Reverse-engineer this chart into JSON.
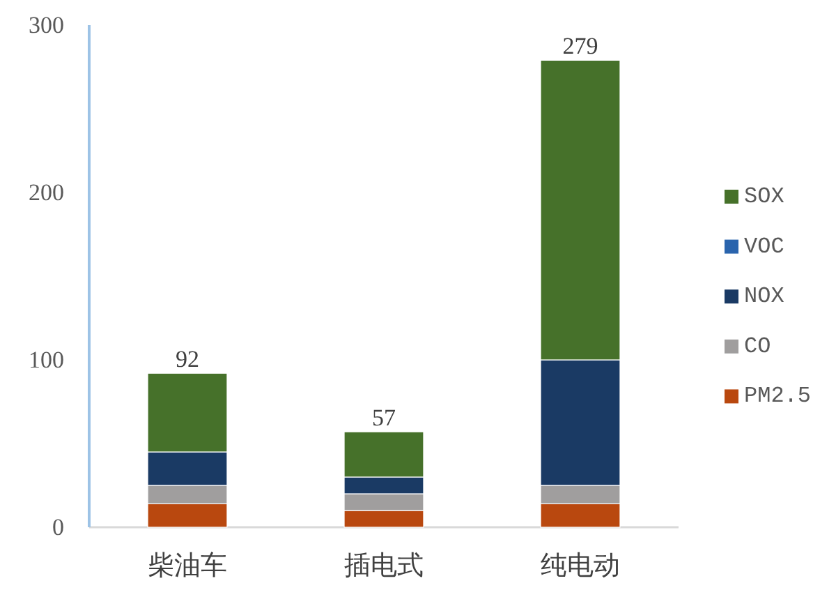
{
  "chart_data": {
    "type": "bar",
    "stacked": true,
    "categories": [
      "柴油车",
      "插电式",
      "纯电动"
    ],
    "series": [
      {
        "name": "PM2.5",
        "color": "#b9480f",
        "values": [
          14,
          10,
          14
        ]
      },
      {
        "name": "CO",
        "color": "#a09e9e",
        "values": [
          11,
          10,
          11
        ]
      },
      {
        "name": "NOX",
        "color": "#1a3a64",
        "values": [
          20,
          10,
          75
        ]
      },
      {
        "name": "VOC",
        "color": "#2a64ad",
        "values": [
          0,
          0,
          0
        ]
      },
      {
        "name": "SOX",
        "color": "#46712a",
        "values": [
          47,
          27,
          179
        ]
      }
    ],
    "totals": [
      "92",
      "57",
      "279"
    ],
    "ylim": [
      0,
      300
    ],
    "yticks": [
      0,
      100,
      200,
      300
    ],
    "legend": "right"
  }
}
